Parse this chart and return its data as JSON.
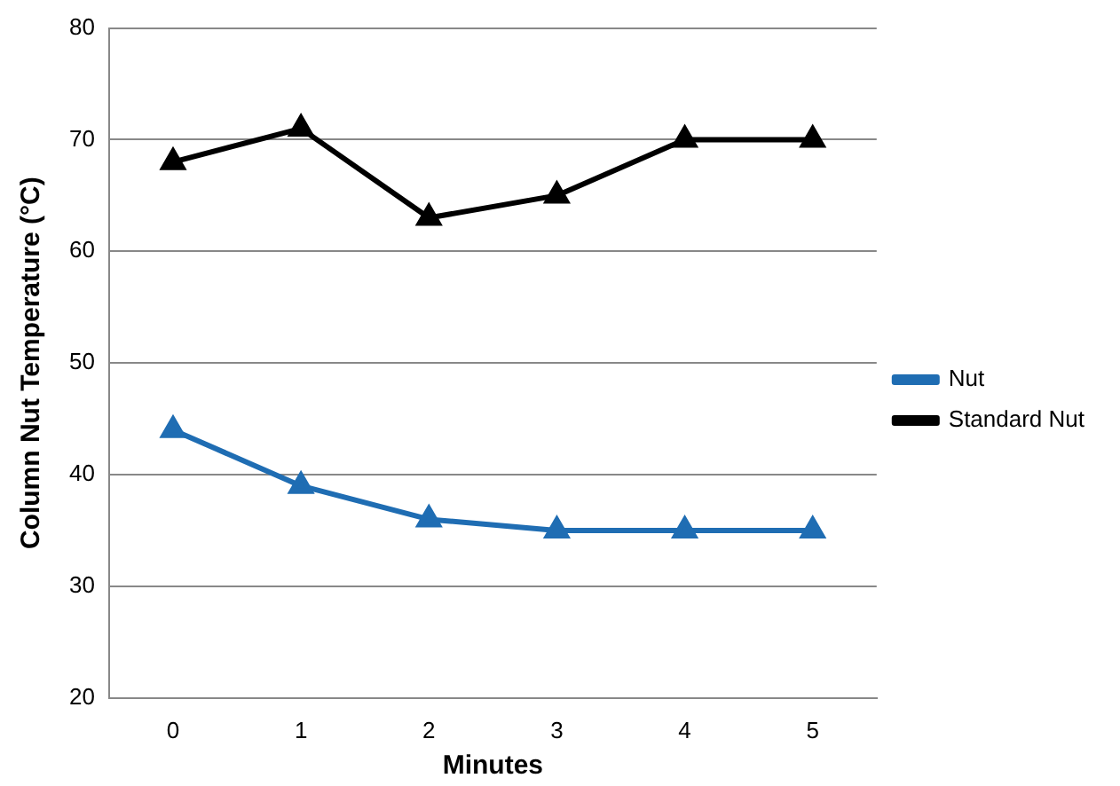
{
  "chart_data": {
    "type": "line",
    "xlabel": "Minutes",
    "ylabel": "Column Nut Temperature (°C)",
    "categories": [
      "0",
      "1",
      "2",
      "3",
      "4",
      "5"
    ],
    "series": [
      {
        "name": "Nut",
        "color": "#1f6db3",
        "values": [
          44,
          39,
          36,
          35,
          35,
          35
        ]
      },
      {
        "name": "Standard Nut",
        "color": "#000000",
        "values": [
          68,
          71,
          63,
          65,
          70,
          70
        ]
      }
    ],
    "ylim": [
      20,
      80
    ],
    "yticks": [
      20,
      30,
      40,
      50,
      60,
      70,
      80
    ],
    "grid": "y",
    "legend": "right",
    "marker": "triangle",
    "line_style": "solid"
  }
}
